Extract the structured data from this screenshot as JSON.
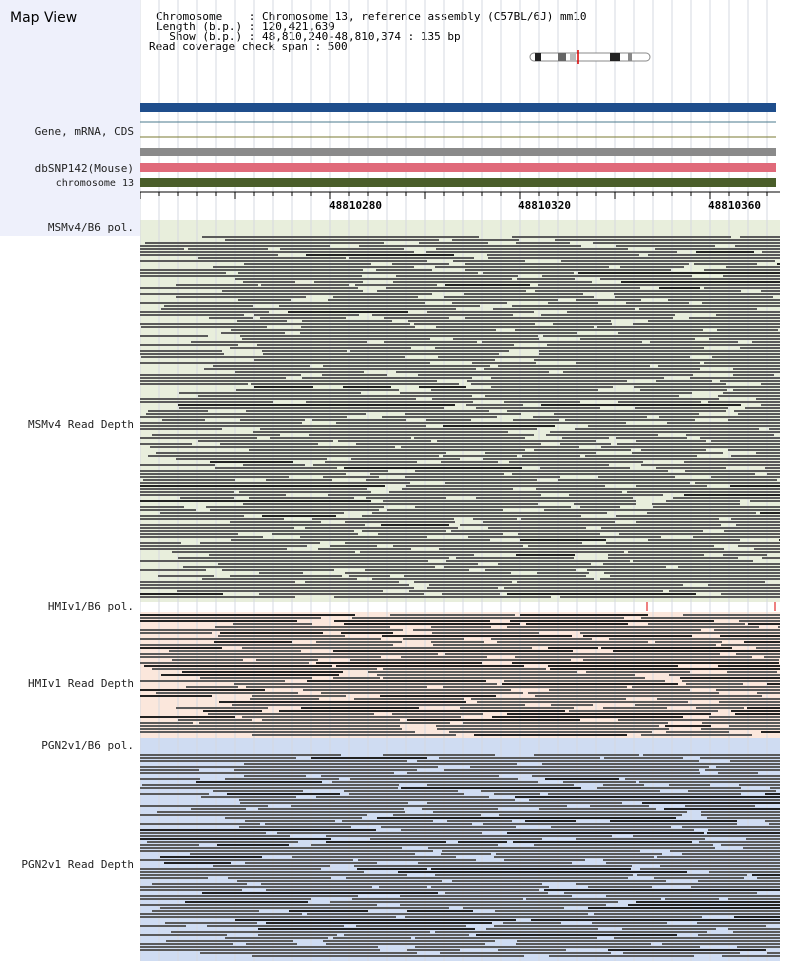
{
  "header": {
    "title": "Map View",
    "chromosome": "Chromosome    : Chromosome 13, reference assembly (C57BL/6J) mm10",
    "length": "Length (b.p.) : 120,421,639",
    "show": "  Show (b.p.) : 48,810,240-48,810,374 : 135 bp",
    "coverage": "Read coverage check span : 500"
  },
  "labels": {
    "gene": "Gene, mRNA, CDS",
    "dbsnp": "dbSNP142(Mouse)",
    "chrom": "chromosome 13",
    "msm_pol": "MSMv4/B6 pol.",
    "msm_depth": "MSMv4 Read Depth",
    "hmi_pol": "HMIv1/B6 pol.",
    "hmi_depth": "HMIv1 Read Depth",
    "pgn_pol": "PGN2v1/B6 pol.",
    "pgn_depth": "PGN2v1 Read Depth"
  },
  "axis": {
    "ticks": [
      "48810280",
      "48810320",
      "48810360"
    ]
  },
  "colors": {
    "panel": "#eef0fb",
    "gene_bar": "#1f4e8c",
    "snp_bar": "#e06a7a",
    "chrom_bar": "#4a5e2a",
    "msm_bg": "#e8eedc",
    "hmi_bg": "#fbe7dc",
    "pgn_bg": "#cfdcf2",
    "read": "#5a5a5a"
  }
}
